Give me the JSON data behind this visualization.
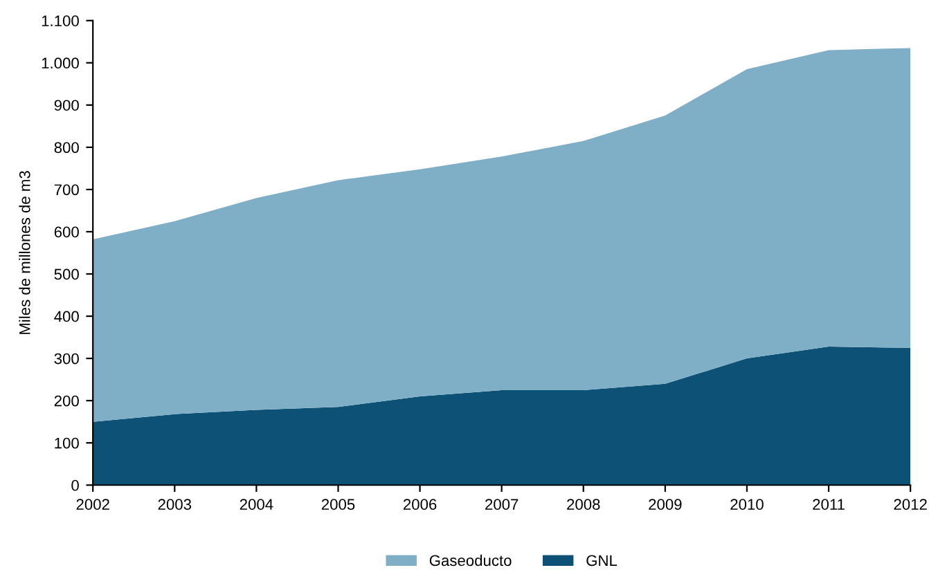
{
  "chart_data": {
    "type": "area",
    "stacked": true,
    "ylabel": "Miles de millones de m3",
    "x": [
      2002,
      2003,
      2004,
      2005,
      2006,
      2007,
      2008,
      2009,
      2010,
      2011,
      2012
    ],
    "series": [
      {
        "name": "GNL",
        "color": "#0d5177",
        "values": [
          150,
          168,
          178,
          185,
          210,
          225,
          225,
          240,
          300,
          328,
          325
        ]
      },
      {
        "name": "Gaseoducto",
        "color": "#7fafc6",
        "values": [
          432,
          457,
          502,
          537,
          538,
          553,
          590,
          635,
          685,
          702,
          710
        ]
      }
    ],
    "xlim": [
      2002,
      2012
    ],
    "xticks": [
      2002,
      2003,
      2004,
      2005,
      2006,
      2007,
      2008,
      2009,
      2010,
      2011,
      2012
    ],
    "ylim": [
      0,
      1100
    ],
    "yticks": [
      0,
      100,
      200,
      300,
      400,
      500,
      600,
      700,
      800,
      900,
      {
        "value": 1000,
        "label": "1.000"
      },
      {
        "value": 1100,
        "label": "1.100"
      }
    ],
    "grid": false,
    "legend": "bottom"
  }
}
